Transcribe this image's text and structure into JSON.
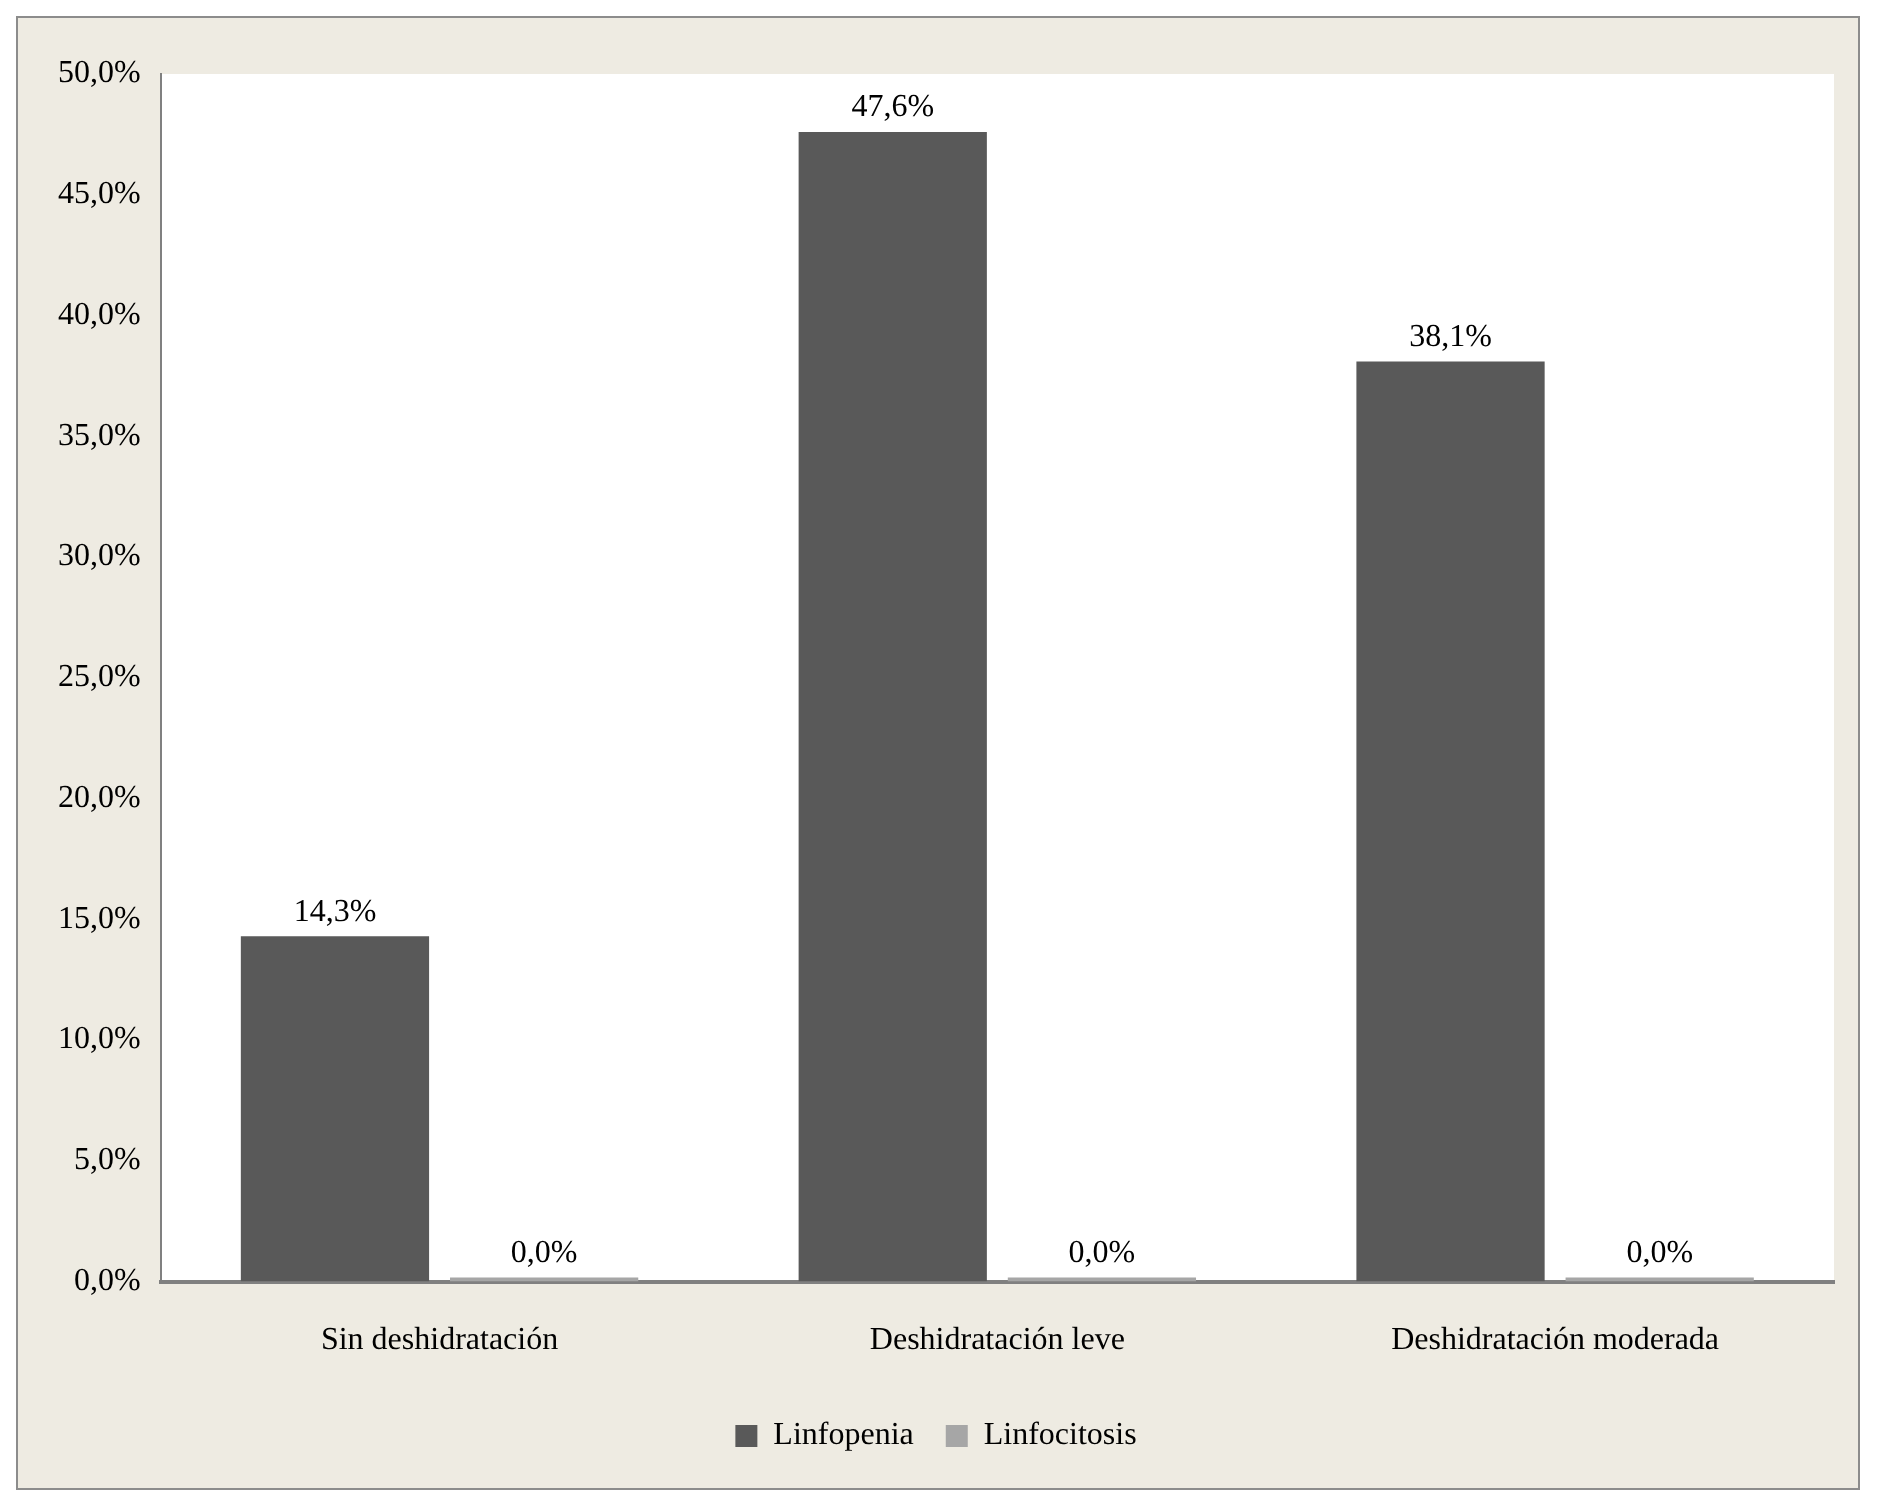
{
  "chart_data": {
    "type": "bar",
    "categories": [
      "Sin deshidratación",
      "Deshidratación leve",
      "Deshidratación moderada"
    ],
    "series": [
      {
        "name": "Linfopenia",
        "color": "#595959",
        "values": [
          14.3,
          47.6,
          38.1
        ],
        "value_labels": [
          "14,3%",
          "47,6%",
          "38,1%"
        ]
      },
      {
        "name": "Linfocitosis",
        "color": "#a6a6a6",
        "values": [
          0,
          0,
          0
        ],
        "value_labels": [
          "0,0%",
          "0,0%",
          "0,0%"
        ]
      }
    ],
    "ylim": [
      0,
      50
    ],
    "yticks": [
      {
        "value": 0,
        "label": "0,0%"
      },
      {
        "value": 5,
        "label": "5,0%"
      },
      {
        "value": 10,
        "label": "10,0%"
      },
      {
        "value": 15,
        "label": "15,0%"
      },
      {
        "value": 20,
        "label": "20,0%"
      },
      {
        "value": 25,
        "label": "25,0%"
      },
      {
        "value": 30,
        "label": "30,0%"
      },
      {
        "value": 35,
        "label": "35,0%"
      },
      {
        "value": 40,
        "label": "40,0%"
      },
      {
        "value": 45,
        "label": "45,0%"
      },
      {
        "value": 50,
        "label": "50,0%"
      }
    ],
    "grid": false,
    "legend": "bottom"
  }
}
